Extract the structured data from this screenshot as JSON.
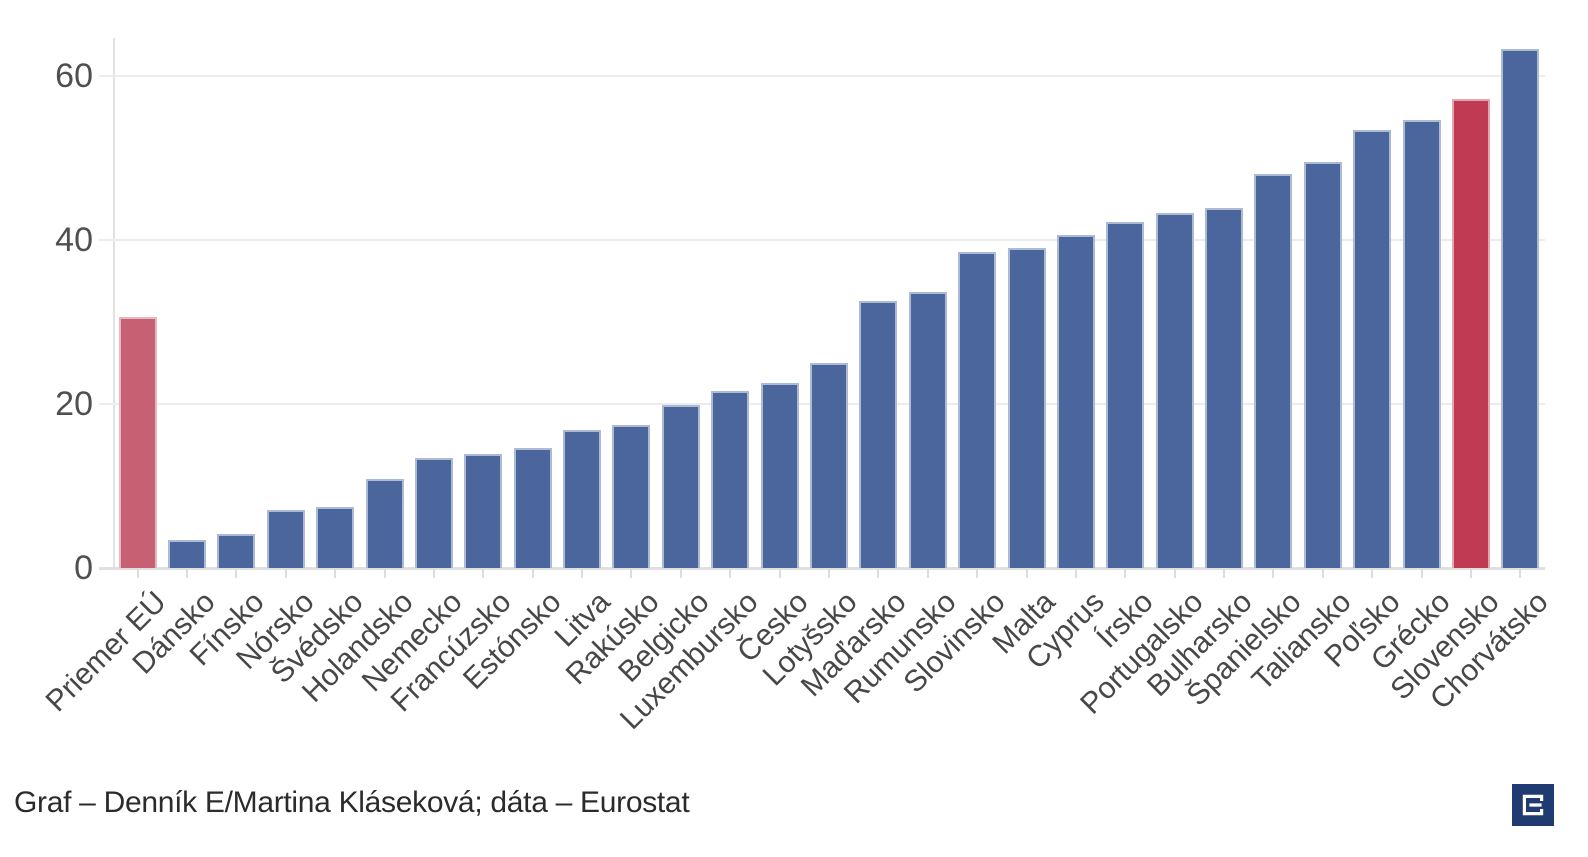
{
  "chart_data": {
    "type": "bar",
    "title": "",
    "xlabel": "",
    "ylabel": "",
    "legend_position": "none",
    "grid": true,
    "yticks": [
      0,
      20,
      40,
      60
    ],
    "ylim": [
      0,
      64.6
    ],
    "bar_color": "#4b669d",
    "categories": [
      "Priemer EÚ",
      "Dánsko",
      "Fínsko",
      "Nórsko",
      "Švédsko",
      "Holandsko",
      "Nemecko",
      "Francúzsko",
      "Estónsko",
      "Litva",
      "Rakúsko",
      "Belgicko",
      "Luxembursko",
      "Česko",
      "Lotyšsko",
      "Maďarsko",
      "Rumunsko",
      "Slovinsko",
      "Malta",
      "Cyprus",
      "Írsko",
      "Portugalsko",
      "Bulharsko",
      "Španielsko",
      "Taliansko",
      "Poľsko",
      "Grécko",
      "Slovensko",
      "Chorvátsko"
    ],
    "values": [
      30.6,
      3.4,
      4.1,
      7.1,
      7.4,
      10.9,
      13.4,
      13.9,
      14.6,
      16.8,
      17.4,
      19.9,
      21.6,
      22.6,
      25.0,
      32.6,
      33.7,
      38.5,
      39.0,
      40.6,
      42.2,
      43.3,
      43.9,
      48.0,
      49.5,
      53.4,
      54.6,
      57.2,
      63.3
    ],
    "highlighted_bars": [
      {
        "category": "Priemer EÚ",
        "color": "#c66072"
      },
      {
        "category": "Slovensko",
        "color": "#bf3a52"
      }
    ]
  },
  "footer": {
    "credit": "Graf – Denník E/Martina Kláseková; dáta – Eurostat"
  },
  "logo": {
    "name": "Denník E",
    "background": "#203a72",
    "glyph": "E"
  }
}
